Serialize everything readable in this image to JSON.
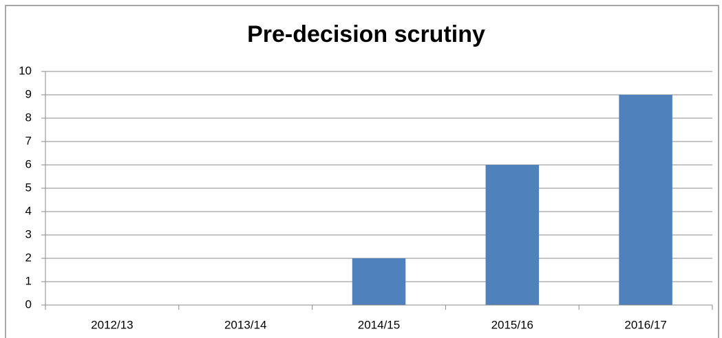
{
  "chart_data": {
    "type": "bar",
    "title": "Pre-decision scrutiny",
    "categories": [
      "2012/13",
      "2013/14",
      "2014/15",
      "2015/16",
      "2016/17"
    ],
    "values": [
      0,
      0,
      2,
      6,
      9
    ],
    "color": "#4f81bd",
    "ylim": [
      0,
      10
    ],
    "yticks": [
      0,
      1,
      2,
      3,
      4,
      5,
      6,
      7,
      8,
      9,
      10
    ],
    "grid": true
  }
}
